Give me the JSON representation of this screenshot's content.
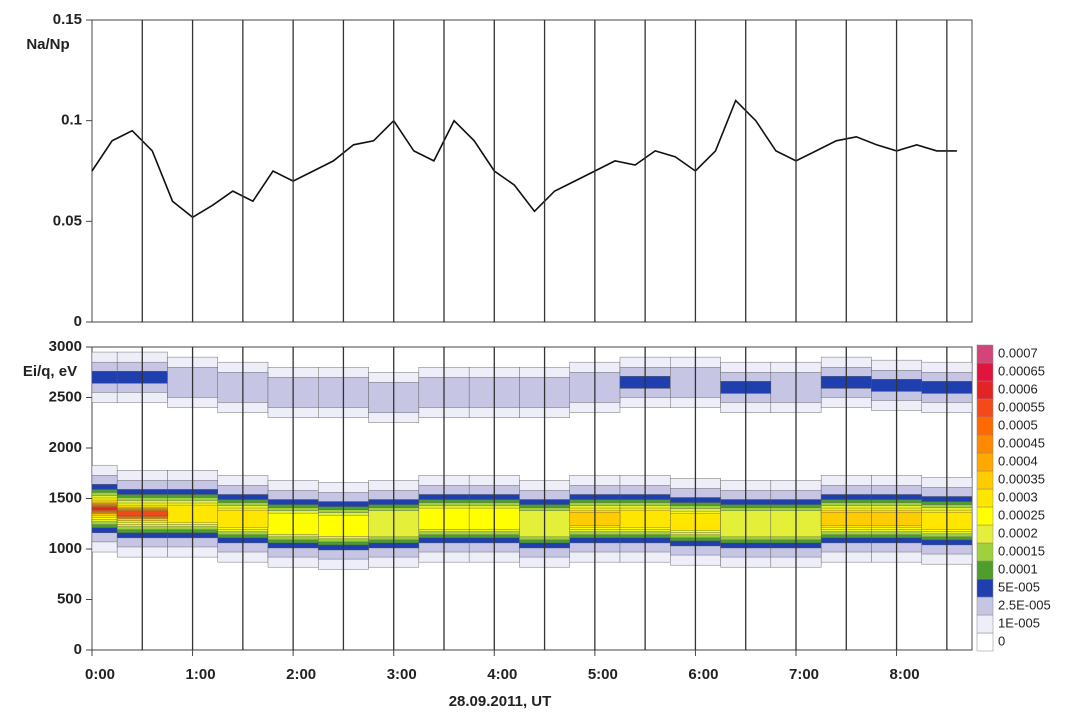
{
  "chart_data": [
    {
      "type": "line",
      "ylabel": "Na/Np",
      "color": "#111111",
      "xlim": [
        0,
        8.75
      ],
      "ylim": [
        0,
        0.15
      ],
      "yticks": [
        0,
        0.05,
        0.1,
        0.15
      ],
      "vlines": [
        0.5,
        1,
        1.5,
        2,
        2.5,
        3,
        3.5,
        4,
        4.5,
        5,
        5.5,
        6,
        6.5,
        7,
        7.5,
        8,
        8.5
      ],
      "x": [
        0,
        0.2,
        0.4,
        0.6,
        0.8,
        1.0,
        1.2,
        1.4,
        1.6,
        1.8,
        2.0,
        2.2,
        2.4,
        2.6,
        2.8,
        3.0,
        3.2,
        3.4,
        3.6,
        3.8,
        4.0,
        4.2,
        4.4,
        4.6,
        4.8,
        5.0,
        5.2,
        5.4,
        5.6,
        5.8,
        6.0,
        6.2,
        6.4,
        6.6,
        6.8,
        7.0,
        7.2,
        7.4,
        7.6,
        7.8,
        8.0,
        8.2,
        8.4,
        8.6
      ],
      "values": [
        0.075,
        0.09,
        0.095,
        0.085,
        0.06,
        0.052,
        0.058,
        0.065,
        0.06,
        0.075,
        0.07,
        0.075,
        0.08,
        0.088,
        0.09,
        0.1,
        0.085,
        0.08,
        0.1,
        0.09,
        0.075,
        0.068,
        0.055,
        0.065,
        0.07,
        0.075,
        0.08,
        0.078,
        0.085,
        0.082,
        0.075,
        0.085,
        0.11,
        0.1,
        0.085,
        0.08,
        0.085,
        0.09,
        0.092,
        0.088,
        0.085,
        0.088,
        0.085,
        0.085
      ]
    },
    {
      "type": "spectrogram",
      "ylabel": "Ei/q, eV",
      "xlabel": "28.09.2011,  UT",
      "xlim": [
        0,
        8.75
      ],
      "ylim": [
        0,
        3000
      ],
      "yticks": [
        0,
        500,
        1000,
        1500,
        2000,
        2500,
        3000
      ],
      "vlines": [
        0.5,
        1,
        1.5,
        2,
        2.5,
        3,
        3.5,
        4,
        4.5,
        5,
        5.5,
        6,
        6.5,
        7,
        7.5,
        8,
        8.5
      ],
      "xticks": [
        {
          "value": 0,
          "label": "0:00"
        },
        {
          "value": 1,
          "label": "1:00"
        },
        {
          "value": 2,
          "label": "2:00"
        },
        {
          "value": 3,
          "label": "3:00"
        },
        {
          "value": 4,
          "label": "4:00"
        },
        {
          "value": 5,
          "label": "5:00"
        },
        {
          "value": 6,
          "label": "6:00"
        },
        {
          "value": 7,
          "label": "7:00"
        },
        {
          "value": 8,
          "label": "8:00"
        }
      ],
      "colorbar": {
        "levels": [
          0,
          {
            "value": 1e-05,
            "label": "1E-005"
          },
          {
            "value": 2.5e-05,
            "label": "2.5E-005"
          },
          {
            "value": 5e-05,
            "label": "5E-005"
          },
          0.0001,
          0.00015,
          0.0002,
          0.00025,
          0.0003,
          0.00035,
          0.0004,
          0.00045,
          0.0005,
          0.00055,
          0.0006,
          0.00065,
          0.0007
        ],
        "colors": [
          "#ffffff",
          "#eeeef8",
          "#c6c6e4",
          "#1f3fae",
          "#4e9e2e",
          "#9fd03e",
          "#e4ef3a",
          "#ffff00",
          "#ffe600",
          "#ffcc00",
          "#ffa800",
          "#ff8a00",
          "#ff6a00",
          "#f44a1a",
          "#e42424",
          "#e0143c",
          "#d44478"
        ]
      },
      "times": [
        0,
        0.5,
        1,
        1.5,
        2,
        2.5,
        3,
        3.5,
        4,
        4.5,
        5,
        5.5,
        6,
        6.5,
        7,
        7.5,
        8,
        8.5
      ],
      "populations": [
        {
          "center": [
            1400,
            1350,
            1350,
            1300,
            1250,
            1230,
            1250,
            1300,
            1300,
            1250,
            1300,
            1300,
            1270,
            1250,
            1250,
            1300,
            1300,
            1280
          ],
          "peak": [
            0.0006,
            0.00055,
            0.0003,
            0.0003,
            0.00025,
            0.00025,
            0.0002,
            0.00025,
            0.00025,
            0.0002,
            0.00035,
            0.0003,
            0.0003,
            0.0002,
            0.0002,
            0.00035,
            0.00035,
            0.0003
          ],
          "half_widths": [
            430,
            330,
            240,
            190,
            160,
            130,
            105,
            85,
            65,
            50,
            38,
            28,
            18,
            10,
            5,
            2
          ]
        },
        {
          "center": [
            2700,
            2700,
            2650,
            2600,
            2550,
            2550,
            2500,
            2550,
            2550,
            2550,
            2600,
            2650,
            2650,
            2600,
            2600,
            2650,
            2620,
            2600
          ],
          "peak": [
            5e-05,
            5e-05,
            2.5e-05,
            2.5e-05,
            2.5e-05,
            2.5e-05,
            2.5e-05,
            2.5e-05,
            2.5e-05,
            2.5e-05,
            2.5e-05,
            5e-05,
            2.5e-05,
            5e-05,
            2.5e-05,
            5e-05,
            5e-05,
            5e-05
          ],
          "half_widths": [
            250,
            150,
            60
          ]
        }
      ]
    }
  ]
}
